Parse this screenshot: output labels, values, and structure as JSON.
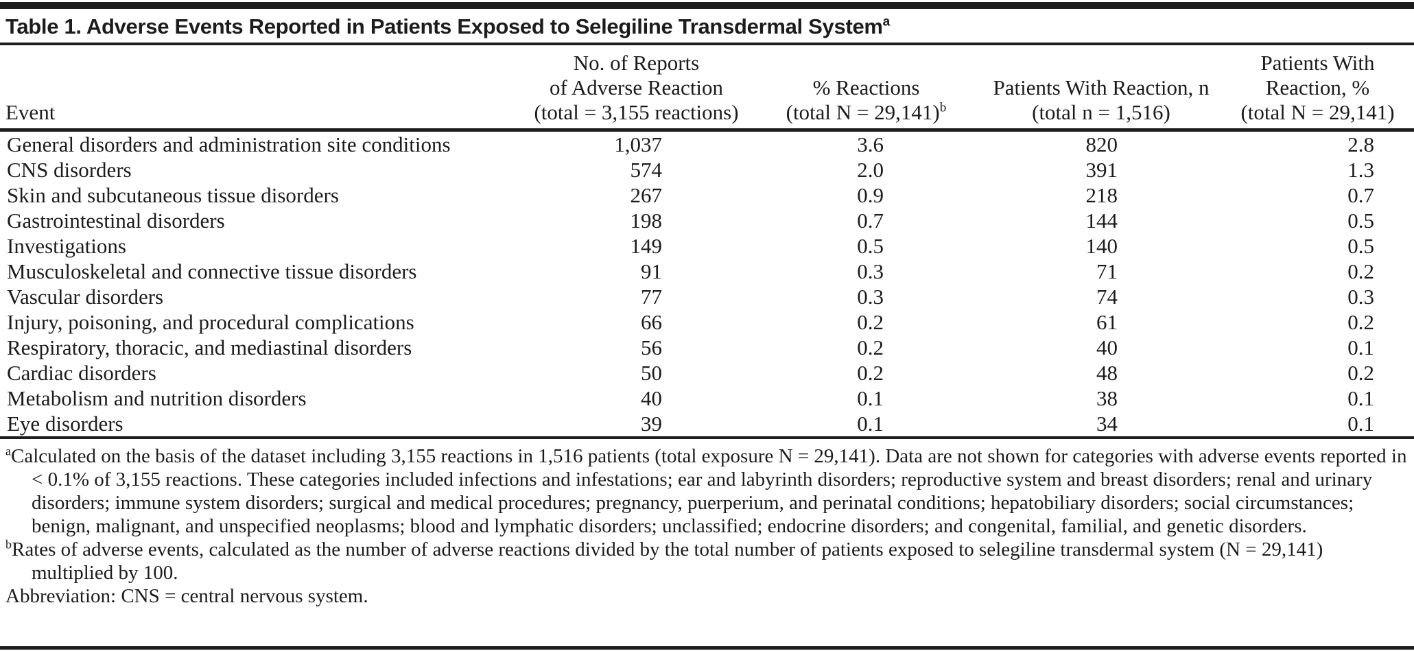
{
  "title": {
    "text": "Table 1. Adverse Events Reported in Patients Exposed to Selegiline Transdermal System",
    "superscript": "a"
  },
  "table": {
    "columns": [
      {
        "id": "event",
        "header_lines": [
          "Event"
        ]
      },
      {
        "id": "reports",
        "header_lines": [
          "No. of Reports",
          "of Adverse Reaction",
          "(total = 3,155 reactions)"
        ]
      },
      {
        "id": "pct_reactions",
        "header_lines": [
          "% Reactions",
          "(total N = 29,141)"
        ],
        "header_superscript": "b"
      },
      {
        "id": "patients_n",
        "header_lines": [
          "Patients With Reaction, n",
          "(total n = 1,516)"
        ]
      },
      {
        "id": "patients_pct",
        "header_lines": [
          "Patients With",
          "Reaction, %",
          "(total N = 29,141)"
        ]
      }
    ],
    "rows": [
      {
        "event": "General disorders and administration site conditions",
        "reports": "1,037",
        "pct_reactions": "3.6",
        "patients_n": "820",
        "patients_pct": "2.8"
      },
      {
        "event": "CNS disorders",
        "reports": "574",
        "pct_reactions": "2.0",
        "patients_n": "391",
        "patients_pct": "1.3"
      },
      {
        "event": "Skin and subcutaneous tissue disorders",
        "reports": "267",
        "pct_reactions": "0.9",
        "patients_n": "218",
        "patients_pct": "0.7"
      },
      {
        "event": "Gastrointestinal disorders",
        "reports": "198",
        "pct_reactions": "0.7",
        "patients_n": "144",
        "patients_pct": "0.5"
      },
      {
        "event": "Investigations",
        "reports": "149",
        "pct_reactions": "0.5",
        "patients_n": "140",
        "patients_pct": "0.5"
      },
      {
        "event": "Musculoskeletal and connective tissue disorders",
        "reports": "91",
        "pct_reactions": "0.3",
        "patients_n": "71",
        "patients_pct": "0.2"
      },
      {
        "event": "Vascular disorders",
        "reports": "77",
        "pct_reactions": "0.3",
        "patients_n": "74",
        "patients_pct": "0.3"
      },
      {
        "event": "Injury, poisoning, and procedural complications",
        "reports": "66",
        "pct_reactions": "0.2",
        "patients_n": "61",
        "patients_pct": "0.2"
      },
      {
        "event": "Respiratory, thoracic, and mediastinal disorders",
        "reports": "56",
        "pct_reactions": "0.2",
        "patients_n": "40",
        "patients_pct": "0.1"
      },
      {
        "event": "Cardiac disorders",
        "reports": "50",
        "pct_reactions": "0.2",
        "patients_n": "48",
        "patients_pct": "0.2"
      },
      {
        "event": "Metabolism and nutrition disorders",
        "reports": "40",
        "pct_reactions": "0.1",
        "patients_n": "38",
        "patients_pct": "0.1"
      },
      {
        "event": "Eye disorders",
        "reports": "39",
        "pct_reactions": "0.1",
        "patients_n": "34",
        "patients_pct": "0.1"
      }
    ]
  },
  "footnotes": [
    {
      "marker": "a",
      "text": "Calculated on the basis of the dataset including 3,155 reactions in 1,516 patients (total exposure N = 29,141). Data are not shown for categories with adverse events reported in < 0.1% of 3,155 reactions. These categories included infections and infestations; ear and labyrinth disorders; reproductive system and breast disorders; renal and urinary disorders; immune system disorders; surgical and medical procedures; pregnancy, puerperium, and perinatal conditions; hepatobiliary disorders; social circumstances; benign, malignant, and unspecified neoplasms; blood and lymphatic disorders; unclassified; endocrine disorders; and congenital, familial, and genetic disorders."
    },
    {
      "marker": "b",
      "text": "Rates of adverse events, calculated as the number of adverse reactions divided by the total number of patients exposed to selegiline transdermal system (N = 29,141) multiplied by 100."
    }
  ],
  "abbreviation_note": "Abbreviation: CNS = central nervous system.",
  "colors": {
    "text": "#1c1c1c",
    "rule": "#1d1d1d",
    "background": "#ffffff"
  }
}
